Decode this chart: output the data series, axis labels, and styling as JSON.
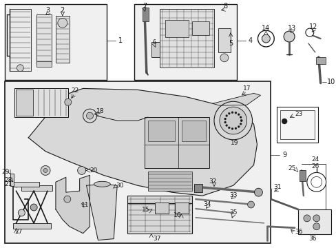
{
  "bg": "#ffffff",
  "box_bg": "#f0f0f0",
  "lc": "#1a1a1a",
  "fs": 6.5,
  "dpi": 100,
  "figsize": [
    4.89,
    3.6
  ]
}
